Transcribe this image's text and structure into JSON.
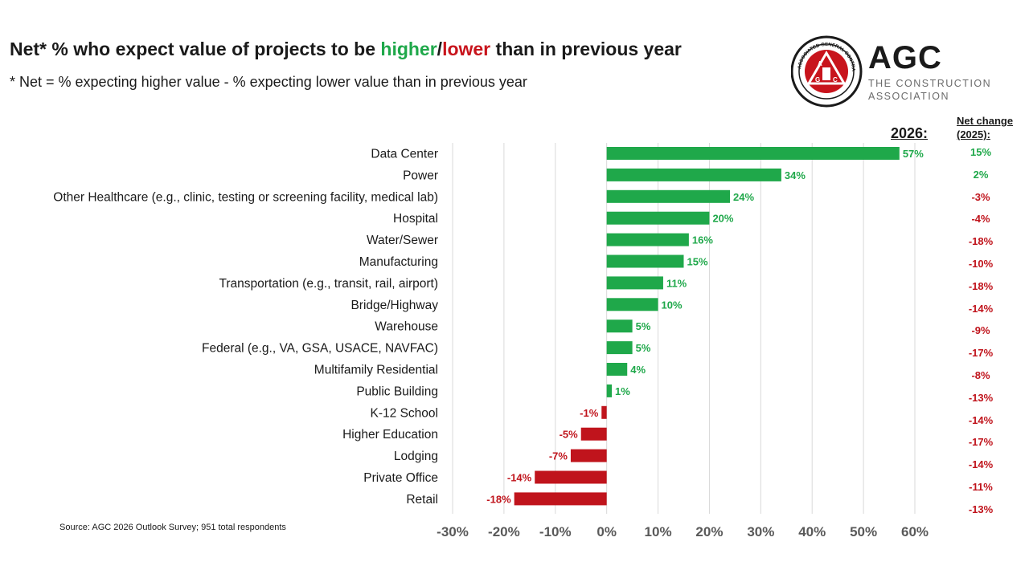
{
  "header": {
    "title_pre": "Net* % who expect value of projects to be ",
    "title_higher": "higher",
    "title_slash": "/",
    "title_lower": "lower",
    "title_post": " than in previous year",
    "subtitle": "* Net = % expecting higher value - % expecting lower value than in previous year"
  },
  "logo": {
    "name": "AGC",
    "tagline_line1": "THE CONSTRUCTION",
    "tagline_line2": "ASSOCIATION",
    "seal_text": "ASSOCIATED GENERAL CONTRACTORS OF AMERICA",
    "seal_letters": "AGC"
  },
  "column_headers": {
    "year": "2026:",
    "net_change": "Net change (2025):"
  },
  "source": "Source: AGC 2026 Outlook Survey; 951 total respondents",
  "colors": {
    "positive": "#1fa84a",
    "negative": "#c0141c",
    "grid": "#d9d9d9"
  },
  "chart_data": {
    "type": "bar",
    "orientation": "horizontal",
    "categories": [
      "Data Center",
      "Power",
      "Other Healthcare (e.g., clinic, testing or screening facility, medical lab)",
      "Hospital",
      "Water/Sewer",
      "Manufacturing",
      "Transportation (e.g., transit, rail, airport)",
      "Bridge/Highway",
      "Warehouse",
      "Federal (e.g., VA, GSA, USACE, NAVFAC)",
      "Multifamily Residential",
      "Public Building",
      "K-12 School",
      "Higher Education",
      "Lodging",
      "Private Office",
      "Retail"
    ],
    "values": [
      57,
      34,
      24,
      20,
      16,
      15,
      11,
      10,
      5,
      5,
      4,
      1,
      -1,
      -5,
      -7,
      -14,
      -18
    ],
    "value_labels": [
      "57%",
      "34%",
      "24%",
      "20%",
      "16%",
      "15%",
      "11%",
      "10%",
      "5%",
      "5%",
      "4%",
      "1%",
      "-1%",
      "-5%",
      "-7%",
      "-14%",
      "-18%"
    ],
    "net_change_2025": [
      "15%",
      "2%",
      "-3%",
      "-4%",
      "-18%",
      "-10%",
      "-18%",
      "-14%",
      "-9%",
      "-17%",
      "-8%",
      "-13%",
      "-14%",
      "-17%",
      "-14%",
      "-11%",
      "-13%"
    ],
    "xlim": [
      -30,
      60
    ],
    "xticks": [
      -30,
      -20,
      -10,
      0,
      10,
      20,
      30,
      40,
      50,
      60
    ],
    "xtick_labels": [
      "-30%",
      "-20%",
      "-10%",
      "0%",
      "10%",
      "20%",
      "30%",
      "40%",
      "50%",
      "60%"
    ],
    "grid": true,
    "title": "",
    "xlabel": "",
    "ylabel": ""
  }
}
